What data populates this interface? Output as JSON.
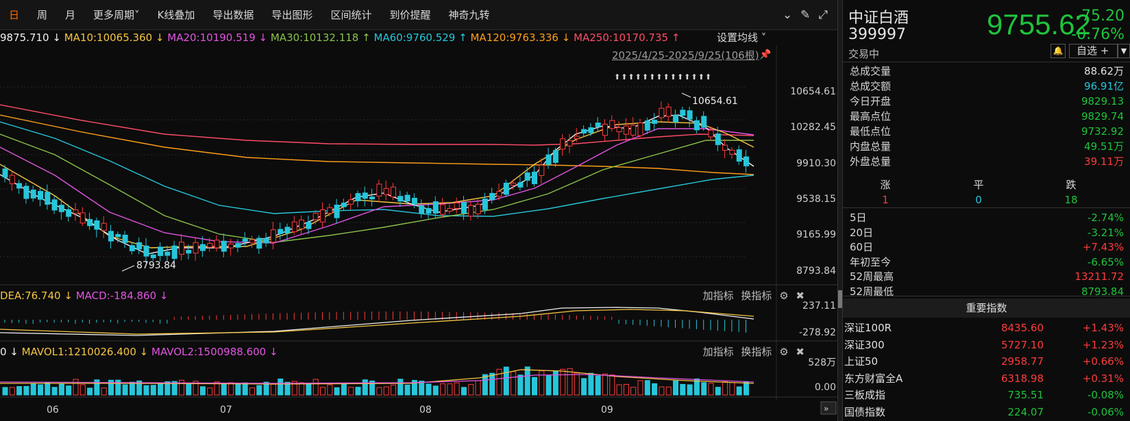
{
  "toolbar": {
    "items": [
      "日",
      "周",
      "月",
      "更多周期",
      "K线叠加",
      "导出数据",
      "导出图形",
      "区间统计",
      "到价提醒",
      "神奇九转"
    ],
    "more_arrow": "˅",
    "icons": [
      "chevron-circle-down-icon",
      "brush-icon",
      "fullscreen-icon"
    ]
  },
  "ma": {
    "entries": [
      {
        "text": "9875.710 ↓",
        "color": "#f0f0f0"
      },
      {
        "text": "MA10:10065.360 ↓",
        "color": "#f5c542"
      },
      {
        "text": "MA20:10190.519 ↓",
        "color": "#e255e2"
      },
      {
        "text": "MA30:10132.118 ↑",
        "color": "#8bc34a"
      },
      {
        "text": "MA60:9760.529 ↑",
        "color": "#26c6da"
      },
      {
        "text": "MA120:9763.336 ↓",
        "color": "#ff9f1a"
      },
      {
        "text": "MA250:10170.735 ↑",
        "color": "#ff4d6a"
      }
    ],
    "settings_label": "设置均线",
    "date_range": "2025/4/25-2025/9/25(106根)"
  },
  "price_axis": [
    "10654.61",
    "10282.45",
    "9910.30",
    "9538.15",
    "9165.99",
    "8793.84"
  ],
  "annotations": {
    "high": "10654.61",
    "low": "8793.84",
    "arrows": "⬆⬆⬆⬆⬆⬆⬆⬆⬆⬆⬆⬆⬆⬆"
  },
  "macd": {
    "entries": [
      {
        "text": "DEA:76.740 ↓",
        "color": "#f5c542"
      },
      {
        "text": "MACD:-184.860 ↓",
        "color": "#e255e2"
      }
    ],
    "axis": [
      "237.11",
      "-278.92"
    ]
  },
  "vol": {
    "entries": [
      {
        "text": "0 ↓",
        "color": "#f0f0f0"
      },
      {
        "text": "MAVOL1:1210026.400 ↓",
        "color": "#f5c542"
      },
      {
        "text": "MAVOL2:1500988.600 ↓",
        "color": "#e255e2"
      }
    ],
    "axis": [
      "528万",
      "0.00"
    ]
  },
  "indicator_tools": {
    "add": "加指标",
    "swap": "换指标"
  },
  "x_axis": [
    "06",
    "07",
    "08",
    "09"
  ],
  "quote": {
    "name": "中证白酒",
    "code": "399997",
    "price": "9755.62",
    "change": "-75.20",
    "change_pct": "-0.76%",
    "status": "交易中",
    "watch_label": "自选 +",
    "colors": {
      "down": "#1ec43c",
      "up": "#ff3b3b"
    }
  },
  "stats": [
    {
      "k": "总成交量",
      "v": "88.62万",
      "c": "#e0e0e0"
    },
    {
      "k": "总成交额",
      "v": "96.91亿",
      "c": "#26c6da"
    },
    {
      "k": "今日开盘",
      "v": "9829.13",
      "c": "#1ec43c"
    },
    {
      "k": "最高点位",
      "v": "9829.74",
      "c": "#1ec43c"
    },
    {
      "k": "最低点位",
      "v": "9732.92",
      "c": "#1ec43c"
    },
    {
      "k": "内盘总量",
      "v": "49.51万",
      "c": "#1ec43c"
    },
    {
      "k": "外盘总量",
      "v": "39.11万",
      "c": "#ff3b3b"
    }
  ],
  "breadth": {
    "labels": [
      "涨",
      "平",
      "跌"
    ],
    "values": [
      "1",
      "0",
      "18"
    ]
  },
  "perf": [
    {
      "k": "5日",
      "v": "-2.74%",
      "c": "#1ec43c"
    },
    {
      "k": "20日",
      "v": "-3.21%",
      "c": "#1ec43c"
    },
    {
      "k": "60日",
      "v": "+7.43%",
      "c": "#ff3b3b"
    },
    {
      "k": "年初至今",
      "v": "-6.65%",
      "c": "#1ec43c"
    },
    {
      "k": "52周最高",
      "v": "13211.72",
      "c": "#ff3b3b"
    },
    {
      "k": "52周最低",
      "v": "8793.84",
      "c": "#1ec43c"
    }
  ],
  "indices_title": "重要指数",
  "indices": [
    {
      "n": "深证100R",
      "p": "8435.60",
      "c": "+1.43%",
      "col": "#ff3b3b"
    },
    {
      "n": "深证300",
      "p": "5727.10",
      "c": "+1.23%",
      "col": "#ff3b3b"
    },
    {
      "n": "上证50",
      "p": "2958.77",
      "c": "+0.66%",
      "col": "#ff3b3b"
    },
    {
      "n": "东方财富全A",
      "p": "6318.98",
      "c": "+0.31%",
      "col": "#ff3b3b"
    },
    {
      "n": "三板成指",
      "p": "735.51",
      "c": "-0.08%",
      "col": "#1ec43c"
    },
    {
      "n": "国债指数",
      "p": "224.07",
      "c": "-0.06%",
      "col": "#1ec43c"
    }
  ]
}
